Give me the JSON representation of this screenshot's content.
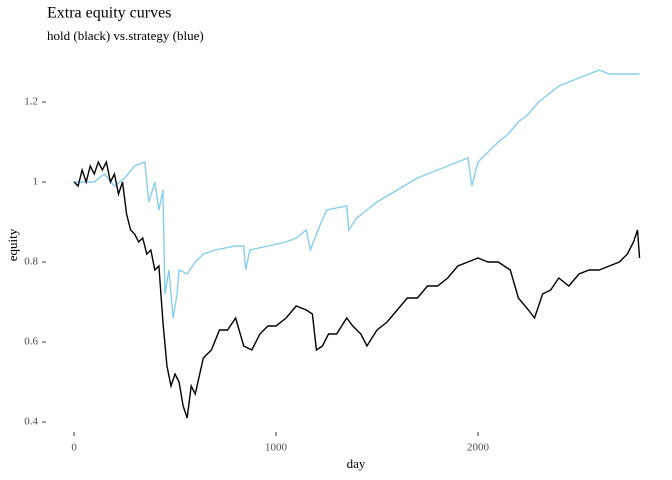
{
  "chart_data": {
    "type": "line",
    "title": "Extra equity curves",
    "subtitle": "hold (black) vs.strategy (blue)",
    "x_label": "day",
    "y_label": "equity",
    "xlim": [
      -134,
      2926
    ],
    "ylim": [
      0.3925,
      1.2925
    ],
    "xticks": [
      0,
      1000,
      2000
    ],
    "yticks": [
      0.4,
      0.6,
      0.8,
      1.0,
      1.2
    ],
    "series": [
      {
        "name": "hold",
        "color": "#000000",
        "x": [
          0,
          20,
          40,
          60,
          80,
          100,
          120,
          140,
          160,
          180,
          200,
          220,
          240,
          260,
          280,
          300,
          320,
          340,
          360,
          380,
          400,
          420,
          440,
          460,
          480,
          500,
          520,
          540,
          560,
          580,
          600,
          640,
          680,
          720,
          760,
          800,
          840,
          880,
          920,
          960,
          1000,
          1050,
          1100,
          1150,
          1180,
          1200,
          1230,
          1260,
          1300,
          1350,
          1380,
          1420,
          1450,
          1500,
          1550,
          1600,
          1650,
          1700,
          1750,
          1800,
          1850,
          1900,
          1950,
          2000,
          2050,
          2100,
          2160,
          2200,
          2250,
          2280,
          2320,
          2360,
          2400,
          2450,
          2500,
          2550,
          2600,
          2650,
          2700,
          2740,
          2770,
          2790,
          2800
        ],
        "values": [
          1.0,
          0.99,
          1.03,
          1.0,
          1.04,
          1.02,
          1.05,
          1.03,
          1.05,
          1.0,
          1.02,
          0.97,
          1.0,
          0.92,
          0.88,
          0.87,
          0.85,
          0.86,
          0.82,
          0.83,
          0.78,
          0.79,
          0.65,
          0.54,
          0.49,
          0.52,
          0.5,
          0.44,
          0.41,
          0.49,
          0.47,
          0.56,
          0.58,
          0.63,
          0.63,
          0.66,
          0.59,
          0.58,
          0.62,
          0.64,
          0.64,
          0.66,
          0.69,
          0.68,
          0.67,
          0.58,
          0.59,
          0.62,
          0.62,
          0.66,
          0.64,
          0.62,
          0.59,
          0.63,
          0.65,
          0.68,
          0.71,
          0.71,
          0.74,
          0.74,
          0.76,
          0.79,
          0.8,
          0.81,
          0.8,
          0.8,
          0.78,
          0.71,
          0.68,
          0.66,
          0.72,
          0.73,
          0.76,
          0.74,
          0.77,
          0.78,
          0.78,
          0.79,
          0.8,
          0.82,
          0.85,
          0.88,
          0.81
        ]
      },
      {
        "name": "strategy",
        "color": "#87ceeb",
        "x": [
          0,
          100,
          150,
          200,
          250,
          300,
          350,
          370,
          400,
          420,
          440,
          450,
          470,
          490,
          510,
          520,
          560,
          600,
          640,
          700,
          800,
          840,
          850,
          870,
          960,
          1050,
          1100,
          1150,
          1170,
          1200,
          1250,
          1350,
          1360,
          1400,
          1500,
          1600,
          1700,
          1800,
          1900,
          1950,
          1970,
          2000,
          2100,
          2150,
          2200,
          2250,
          2300,
          2350,
          2400,
          2500,
          2600,
          2650,
          2800
        ],
        "values": [
          1.0,
          1.0,
          1.02,
          0.99,
          1.01,
          1.04,
          1.05,
          0.95,
          1.0,
          0.93,
          0.98,
          0.72,
          0.78,
          0.66,
          0.72,
          0.78,
          0.77,
          0.8,
          0.82,
          0.83,
          0.84,
          0.84,
          0.78,
          0.83,
          0.84,
          0.85,
          0.86,
          0.88,
          0.83,
          0.87,
          0.93,
          0.94,
          0.88,
          0.91,
          0.95,
          0.98,
          1.01,
          1.03,
          1.05,
          1.06,
          0.99,
          1.05,
          1.1,
          1.12,
          1.15,
          1.17,
          1.2,
          1.22,
          1.24,
          1.26,
          1.28,
          1.27,
          1.27
        ]
      }
    ]
  }
}
